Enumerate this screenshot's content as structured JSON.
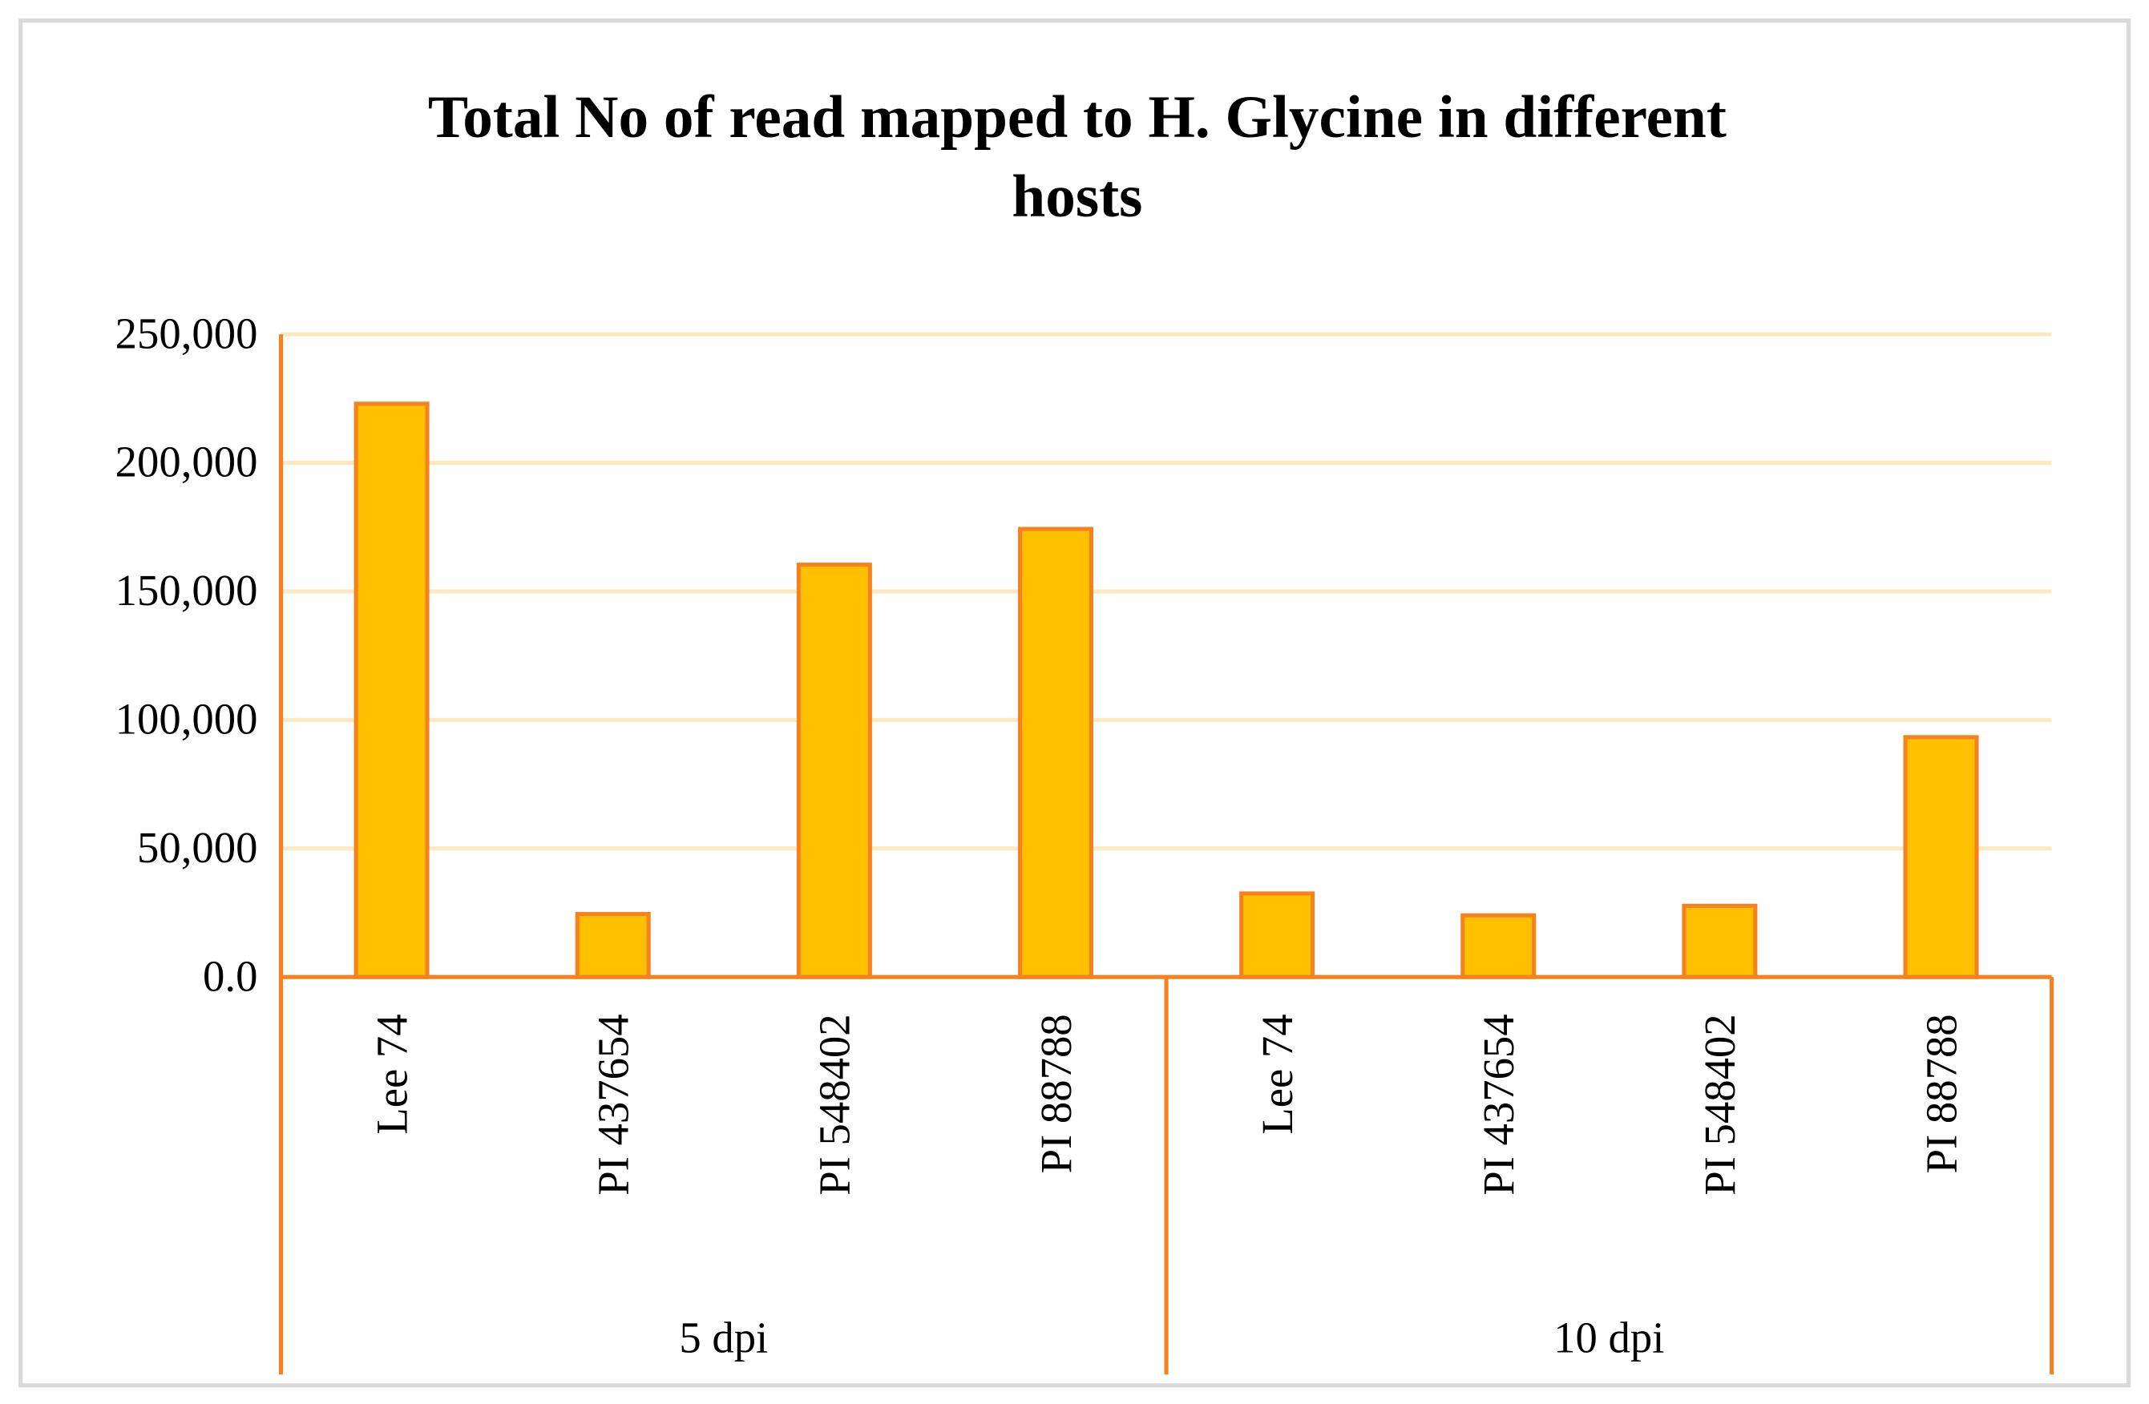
{
  "chart_data": {
    "type": "bar",
    "title": "Total No of read mapped to H. Glycine in different hosts",
    "groups": [
      {
        "name": "5 dpi",
        "categories": [
          "Lee 74",
          "PI 437654",
          "PI 548402",
          "PI 88788"
        ],
        "values": [
          223000,
          24500,
          160400,
          174300
        ]
      },
      {
        "name": "10 dpi",
        "categories": [
          "Lee 74",
          "PI 437654",
          "PI 548402",
          "PI 88788"
        ],
        "values": [
          32500,
          24000,
          27700,
          93300
        ]
      }
    ],
    "color": "#ffc000",
    "edge_color": "#f58220",
    "ylim": [
      0,
      250000
    ],
    "yticks": [
      {
        "value": 0,
        "label": "0.0"
      },
      {
        "value": 50000,
        "label": "50,000"
      },
      {
        "value": 100000,
        "label": "100,000"
      },
      {
        "value": 150000,
        "label": "150,000"
      },
      {
        "value": 200000,
        "label": "200,000"
      },
      {
        "value": 250000,
        "label": "250,000"
      }
    ],
    "grid": true
  }
}
